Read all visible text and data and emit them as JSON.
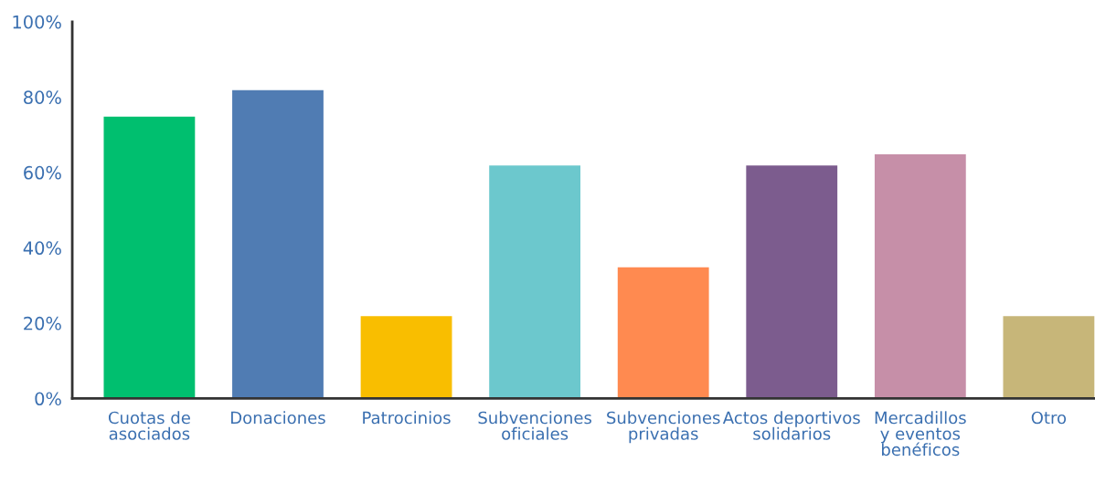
{
  "chart_data": {
    "type": "bar",
    "categories": [
      "Cuotas de\nasociados",
      "Donaciones",
      "Patrocinios",
      "Subvenciones\noficiales",
      "Subvenciones\nprivadas",
      "Actos deportivos\nsolidarios",
      "Mercadillos\ny eventos\nbenéficos",
      "Otro"
    ],
    "values": [
      75,
      82,
      22,
      62,
      35,
      62,
      65,
      22
    ],
    "colors": [
      "#00bf6f",
      "#507cb3",
      "#f9be00",
      "#6cc8cd",
      "#ff8a50",
      "#7c5c8e",
      "#c68fa8",
      "#c7b679"
    ],
    "ylim": [
      0,
      100
    ],
    "yticks": [
      {
        "value": 0,
        "label": "0%"
      },
      {
        "value": 20,
        "label": "20%"
      },
      {
        "value": 40,
        "label": "40%"
      },
      {
        "value": 60,
        "label": "60%"
      },
      {
        "value": 80,
        "label": "80%"
      },
      {
        "value": 100,
        "label": "100%"
      }
    ],
    "grid": false,
    "legend": false
  }
}
